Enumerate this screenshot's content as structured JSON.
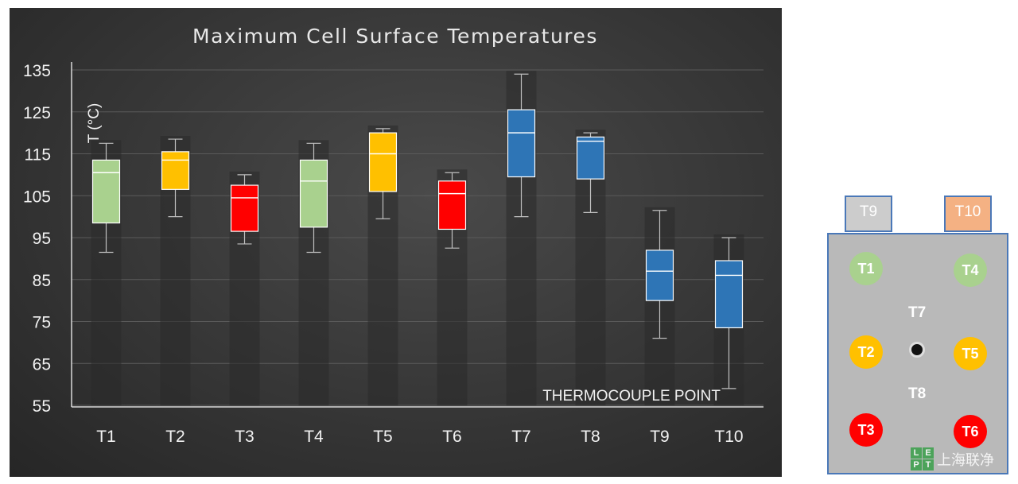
{
  "chart_data": {
    "type": "box",
    "title": "Maximum Cell Surface Temperatures",
    "ylabel": "T (°C)",
    "xlabel": "THERMOCOUPLE POINT",
    "ylim": [
      55,
      135
    ],
    "yticks": [
      135,
      125,
      115,
      105,
      95,
      85,
      75,
      65,
      55
    ],
    "categories": [
      "T1",
      "T2",
      "T3",
      "T4",
      "T5",
      "T6",
      "T7",
      "T8",
      "T9",
      "T10"
    ],
    "boxes": [
      {
        "name": "T1",
        "min": 91.5,
        "q1": 98.5,
        "median": 110.5,
        "q3": 113.5,
        "max": 117.5,
        "color": "#a9d18e"
      },
      {
        "name": "T2",
        "min": 100,
        "q1": 106.5,
        "median": 113.5,
        "q3": 115.5,
        "max": 118.5,
        "color": "#ffc000"
      },
      {
        "name": "T3",
        "min": 93.5,
        "q1": 96.5,
        "median": 104.5,
        "q3": 107.5,
        "max": 110,
        "color": "#ff0000"
      },
      {
        "name": "T4",
        "min": 91.5,
        "q1": 97.5,
        "median": 108.5,
        "q3": 113.5,
        "max": 117.5,
        "color": "#a9d18e"
      },
      {
        "name": "T5",
        "min": 99.5,
        "q1": 106,
        "median": 115,
        "q3": 120,
        "max": 121,
        "color": "#ffc000"
      },
      {
        "name": "T6",
        "min": 92.5,
        "q1": 97,
        "median": 105.5,
        "q3": 108.5,
        "max": 110.5,
        "color": "#ff0000"
      },
      {
        "name": "T7",
        "min": 100,
        "q1": 109.5,
        "median": 120,
        "q3": 125.5,
        "max": 134,
        "color": "#2e75b6"
      },
      {
        "name": "T8",
        "min": 101,
        "q1": 109,
        "median": 118,
        "q3": 119,
        "max": 120,
        "color": "#2e75b6"
      },
      {
        "name": "T9",
        "min": 71,
        "q1": 80,
        "median": 87,
        "q3": 92,
        "max": 101.5,
        "color": "#2e75b6"
      },
      {
        "name": "T10",
        "min": 59,
        "q1": 73.5,
        "median": 86,
        "q3": 89.5,
        "max": 95,
        "color": "#2e75b6"
      }
    ],
    "grid": true,
    "background": "#3a3a3a"
  },
  "diagram": {
    "terminals": [
      {
        "label": "T9",
        "color": "#cccccc"
      },
      {
        "label": "T10",
        "color": "#f4b183"
      }
    ],
    "points": [
      {
        "label": "T1",
        "color": "#a9d18e"
      },
      {
        "label": "T4",
        "color": "#a9d18e"
      },
      {
        "label": "T2",
        "color": "#ffc000"
      },
      {
        "label": "T5",
        "color": "#ffc000"
      },
      {
        "label": "T3",
        "color": "#ff0000"
      },
      {
        "label": "T6",
        "color": "#ff0000"
      }
    ],
    "center_labels": {
      "top": "T7",
      "bottom": "T8"
    },
    "body_color": "#b9b9b9",
    "border_color": "#4a78b8"
  },
  "watermark": {
    "logo_letters": [
      "L",
      "E",
      "P",
      "T"
    ],
    "text": "上海联净",
    "color": "#3aa04a"
  }
}
